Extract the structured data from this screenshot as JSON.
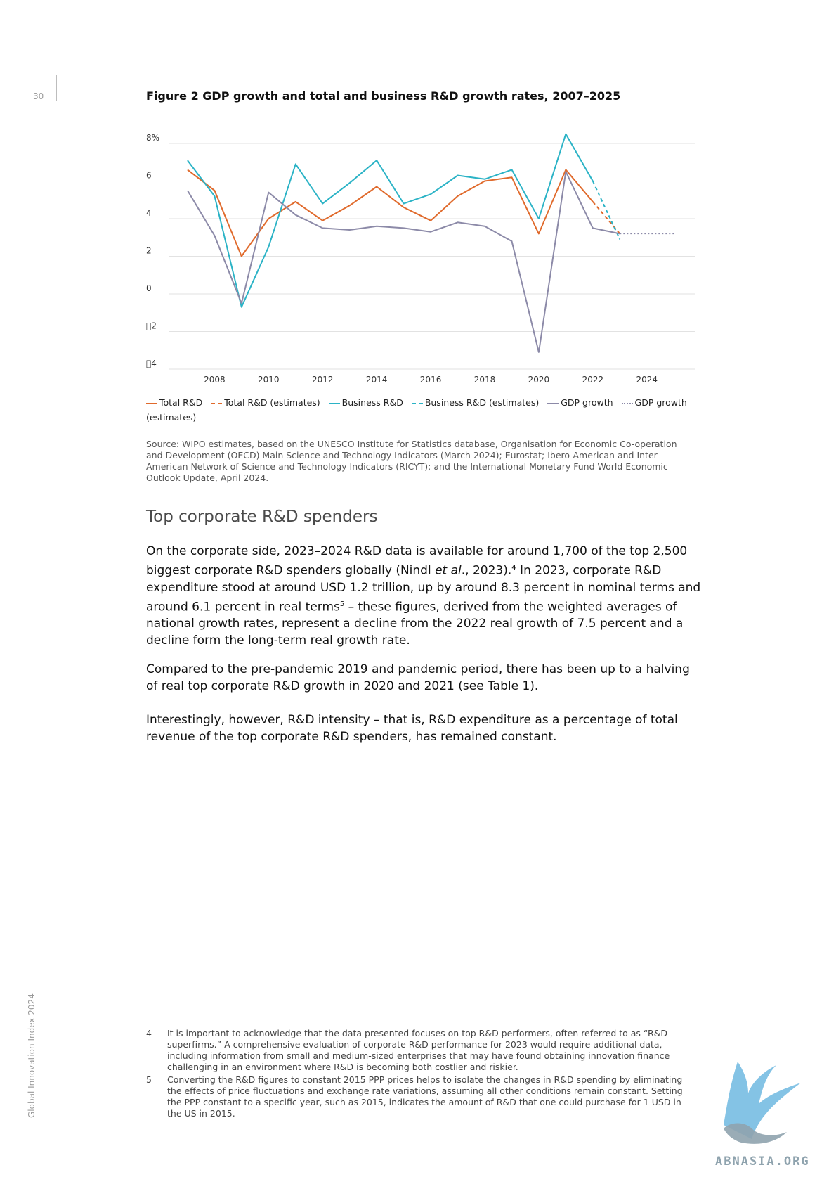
{
  "page": {
    "number": "30",
    "side_label": "Global Innovation Index 2024"
  },
  "figure": {
    "title": "Figure 2 GDP growth and total and business R&D growth rates, 2007–2025",
    "legend": [
      {
        "label": "Total R&D",
        "color": "#e06a2c",
        "style": "solid"
      },
      {
        "label": "Total R&D (estimates)",
        "color": "#e06a2c",
        "style": "dash"
      },
      {
        "label": "Business R&D",
        "color": "#2bb3c6",
        "style": "solid"
      },
      {
        "label": "Business R&D (estimates)",
        "color": "#2bb3c6",
        "style": "dash"
      },
      {
        "label": "GDP growth",
        "color": "#8c8aa8",
        "style": "solid"
      },
      {
        "label": "GDP growth (estimates)",
        "color": "#8c8aa8",
        "style": "dot"
      }
    ],
    "source": "Source: WIPO estimates, based on the UNESCO Institute for Statistics database, Organisation for Economic Co-operation and Development (OECD) Main Science and Technology Indicators (March 2024); Eurostat; Ibero-American and Inter-American Network of Science and Technology Indicators (RICYT); and the International Monetary Fund World Economic Outlook Update, April 2024."
  },
  "chart_data": {
    "type": "line",
    "title": "Figure 2 GDP growth and total and business R&D growth rates, 2007–2025",
    "xlabel": "",
    "ylabel": "",
    "xlim": [
      2006.3,
      2025.8
    ],
    "ylim": [
      -4,
      8
    ],
    "y_ticks": [
      8,
      6,
      4,
      2,
      0,
      -2,
      -4
    ],
    "y_tick_labels": [
      "8%",
      "6",
      "4",
      "2",
      "0",
      "\u00002",
      "\u00004"
    ],
    "x_ticks": [
      2008,
      2010,
      2012,
      2014,
      2016,
      2018,
      2020,
      2022,
      2024
    ],
    "grid": "horizontal",
    "legend_position": "bottom",
    "series": [
      {
        "name": "Total R&D",
        "color": "#e06a2c",
        "style": "solid",
        "x": [
          2007,
          2008,
          2009,
          2010,
          2011,
          2012,
          2013,
          2014,
          2015,
          2016,
          2017,
          2018,
          2019,
          2020,
          2021,
          2022
        ],
        "y": [
          6.6,
          5.5,
          2.0,
          4.0,
          4.9,
          3.9,
          4.7,
          5.7,
          4.6,
          3.9,
          5.2,
          6.0,
          6.2,
          3.2,
          6.6,
          4.9
        ]
      },
      {
        "name": "Total R&D (estimates)",
        "color": "#e06a2c",
        "style": "dash",
        "x": [
          2022,
          2023
        ],
        "y": [
          4.9,
          3.2
        ]
      },
      {
        "name": "Business R&D",
        "color": "#2bb3c6",
        "style": "solid",
        "x": [
          2007,
          2008,
          2009,
          2010,
          2011,
          2012,
          2013,
          2014,
          2015,
          2016,
          2017,
          2018,
          2019,
          2020,
          2021,
          2022
        ],
        "y": [
          7.1,
          5.2,
          -0.7,
          2.5,
          6.9,
          4.8,
          5.9,
          7.1,
          4.8,
          5.3,
          6.3,
          6.1,
          6.6,
          4.0,
          8.5,
          6.0
        ]
      },
      {
        "name": "Business R&D (estimates)",
        "color": "#2bb3c6",
        "style": "dash",
        "x": [
          2022,
          2023
        ],
        "y": [
          6.0,
          2.9
        ]
      },
      {
        "name": "GDP growth",
        "color": "#8c8aa8",
        "style": "solid",
        "x": [
          2007,
          2008,
          2009,
          2010,
          2011,
          2012,
          2013,
          2014,
          2015,
          2016,
          2017,
          2018,
          2019,
          2020,
          2021,
          2022,
          2023
        ],
        "y": [
          5.5,
          3.1,
          -0.5,
          5.4,
          4.2,
          3.5,
          3.4,
          3.6,
          3.5,
          3.3,
          3.8,
          3.6,
          2.8,
          -3.1,
          6.5,
          3.5,
          3.2
        ]
      },
      {
        "name": "GDP growth (estimates)",
        "color": "#8c8aa8",
        "style": "dot",
        "x": [
          2023,
          2025
        ],
        "y": [
          3.2,
          3.2
        ]
      }
    ]
  },
  "section": {
    "heading": "Top corporate R&D spenders",
    "paragraphs": [
      {
        "p1a": "On the corporate side, 2023–2024 R&D data is available for around 1,700 of the top 2,500 biggest corporate R&D spenders globally (Nindl ",
        "p1b": "et al",
        "p1c": "., 2023).",
        "p1d": "4",
        "p1e": " In 2023, corporate R&D expenditure stood at around USD 1.2 trillion, up by around 8.3 percent in nominal terms and around 6.1 percent in real terms",
        "p1f": "5",
        "p1g": " – these figures, derived from the weighted averages of national growth rates, represent a decline from the 2022 real growth of 7.5 percent and a decline form the long-term real growth rate."
      },
      {
        "text": "Compared to the pre-pandemic 2019 and pandemic period, there has been up to a halving of real top corporate R&D growth in 2020 and 2021 (see Table 1)."
      },
      {
        "text": "Interestingly, however, R&D intensity – that is, R&D expenditure as a percentage of total revenue of the top corporate R&D spenders, has remained constant."
      }
    ]
  },
  "footnotes": [
    {
      "num": "4",
      "text": "It is important to acknowledge that the data presented focuses on top R&D performers, often referred to as “R&D superfirms.” A comprehensive evaluation of corporate R&D performance for 2023 would require additional data, including information from small and medium-sized enterprises that may have found obtaining innovation finance challenging in an environment where R&D is becoming both costlier and riskier."
    },
    {
      "num": "5",
      "text": "Converting the R&D figures to constant 2015 PPP prices helps to isolate the changes in R&D spending by eliminating the effects of price fluctuations and exchange rate variations, assuming all other conditions remain constant. Setting the PPP constant to a specific year, such as 2015, indicates the amount of R&D that one could purchase for 1 USD in the US in 2015."
    }
  ],
  "watermark": {
    "text": "ABNASIA.ORG",
    "color": "#6fb8e0"
  }
}
